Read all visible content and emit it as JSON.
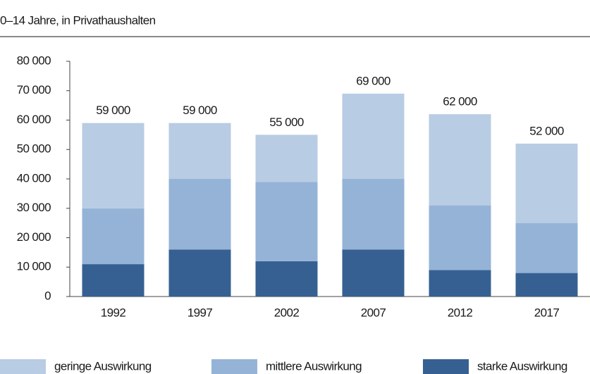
{
  "chart_data": {
    "type": "stacked_bar",
    "subtitle": "0–14 Jahre, in Privathaushalten",
    "categories": [
      "1992",
      "1997",
      "2002",
      "2007",
      "2012",
      "2017"
    ],
    "series": [
      {
        "name": "geringe Auswirkung",
        "color": "#b8cce4",
        "values": [
          29000,
          19000,
          16000,
          29000,
          31000,
          27000
        ]
      },
      {
        "name": "mittlere Auswirkung",
        "color": "#95b3d7",
        "values": [
          19000,
          24000,
          27000,
          24000,
          22000,
          17000
        ]
      },
      {
        "name": "starke Auswirkung",
        "color": "#366092",
        "values": [
          11000,
          16000,
          12000,
          16000,
          9000,
          8000
        ]
      }
    ],
    "totals": [
      59000,
      59000,
      55000,
      69000,
      62000,
      52000
    ],
    "total_labels": [
      "59 000",
      "59 000",
      "55 000",
      "69 000",
      "62 000",
      "52 000"
    ],
    "ylim": [
      0,
      80000
    ],
    "yticks": [
      0,
      {
        "value": 10000,
        "label": "10 000"
      },
      {
        "value": 20000,
        "label": "20 000"
      },
      {
        "value": 30000,
        "label": "30 000"
      },
      {
        "value": 40000,
        "label": "40 000"
      },
      {
        "value": 50000,
        "label": "50 000"
      },
      {
        "value": 60000,
        "label": "60 000"
      },
      {
        "value": 70000,
        "label": "70 000"
      },
      {
        "value": 80000,
        "label": "80 000"
      }
    ],
    "grid": false
  }
}
